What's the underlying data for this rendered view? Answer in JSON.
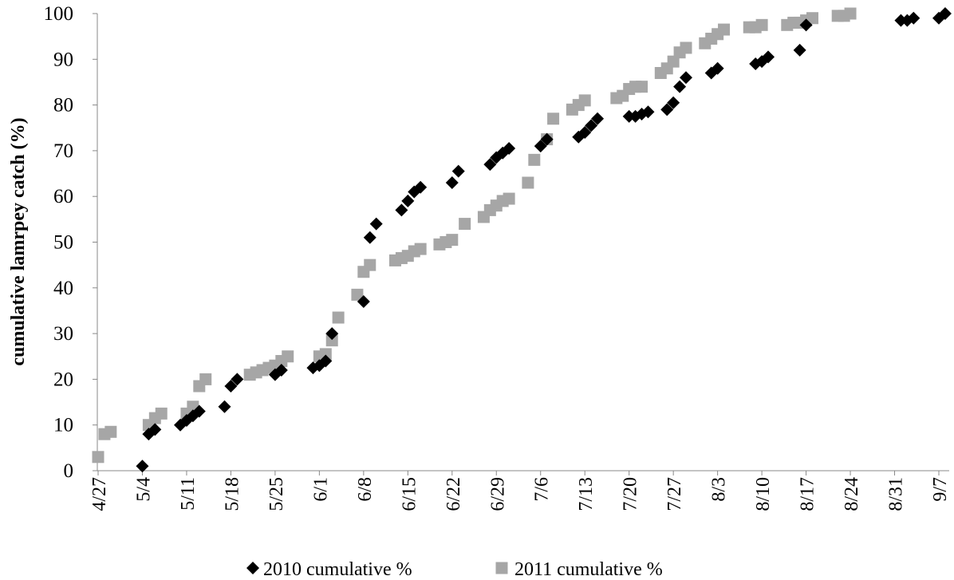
{
  "chart_data": {
    "type": "scatter",
    "title": "",
    "xlabel": "",
    "ylabel": "cumulative lamrpey catch (%)",
    "ylim": [
      0,
      100
    ],
    "y_ticks": [
      "0",
      "10",
      "20",
      "30",
      "40",
      "50",
      "60",
      "70",
      "80",
      "90",
      "100"
    ],
    "x_tick_labels": [
      "4/27",
      "5/4",
      "5/11",
      "5/18",
      "5/25",
      "6/1",
      "6/8",
      "6/15",
      "6/22",
      "6/29",
      "7/6",
      "7/13",
      "7/20",
      "7/27",
      "8/3",
      "8/10",
      "8/17",
      "8/24",
      "8/31",
      "9/7"
    ],
    "xlim": [
      "4/27",
      "9/8"
    ],
    "grid": false,
    "legend_position": "bottom",
    "colors": {
      "2010": "#000000",
      "2011": "#a6a6a6"
    },
    "series": [
      {
        "name": "2010 cumulative %",
        "marker": "diamond",
        "points": [
          [
            "5/4",
            1
          ],
          [
            "5/5",
            8
          ],
          [
            "5/6",
            9
          ],
          [
            "5/10",
            10
          ],
          [
            "5/11",
            11
          ],
          [
            "5/12",
            12
          ],
          [
            "5/13",
            13
          ],
          [
            "5/17",
            14
          ],
          [
            "5/18",
            18.5
          ],
          [
            "5/19",
            20
          ],
          [
            "5/25",
            21
          ],
          [
            "5/26",
            22
          ],
          [
            "5/31",
            22.5
          ],
          [
            "6/1",
            23
          ],
          [
            "6/2",
            24
          ],
          [
            "6/3",
            30
          ],
          [
            "6/8",
            37
          ],
          [
            "6/9",
            51
          ],
          [
            "6/10",
            54
          ],
          [
            "6/14",
            57
          ],
          [
            "6/15",
            59
          ],
          [
            "6/16",
            61
          ],
          [
            "6/17",
            62
          ],
          [
            "6/22",
            63
          ],
          [
            "6/23",
            65.5
          ],
          [
            "6/28",
            67
          ],
          [
            "6/29",
            68.5
          ],
          [
            "6/30",
            69.5
          ],
          [
            "7/1",
            70.5
          ],
          [
            "7/6",
            71
          ],
          [
            "7/7",
            72.5
          ],
          [
            "7/12",
            73
          ],
          [
            "7/13",
            74
          ],
          [
            "7/14",
            75.5
          ],
          [
            "7/15",
            77
          ],
          [
            "7/20",
            77.5
          ],
          [
            "7/21",
            77.5
          ],
          [
            "7/22",
            78
          ],
          [
            "7/23",
            78.5
          ],
          [
            "7/26",
            79
          ],
          [
            "7/27",
            80.5
          ],
          [
            "7/28",
            84
          ],
          [
            "7/29",
            86
          ],
          [
            "8/2",
            87
          ],
          [
            "8/3",
            88
          ],
          [
            "8/9",
            89
          ],
          [
            "8/10",
            89.5
          ],
          [
            "8/11",
            90.5
          ],
          [
            "8/16",
            92
          ],
          [
            "8/17",
            97.5
          ],
          [
            "9/1",
            98.5
          ],
          [
            "9/2",
            98.5
          ],
          [
            "9/3",
            99
          ],
          [
            "9/7",
            99
          ],
          [
            "9/8",
            100
          ]
        ]
      },
      {
        "name": "2011 cumulative %",
        "marker": "square",
        "points": [
          [
            "4/27",
            3
          ],
          [
            "4/28",
            8
          ],
          [
            "4/29",
            8.5
          ],
          [
            "5/5",
            10
          ],
          [
            "5/6",
            11.5
          ],
          [
            "5/7",
            12.5
          ],
          [
            "5/11",
            12.5
          ],
          [
            "5/12",
            14
          ],
          [
            "5/13",
            18.5
          ],
          [
            "5/14",
            20
          ],
          [
            "5/21",
            21
          ],
          [
            "5/22",
            21.5
          ],
          [
            "5/23",
            22
          ],
          [
            "5/24",
            22.5
          ],
          [
            "5/25",
            23
          ],
          [
            "5/26",
            24
          ],
          [
            "5/27",
            25
          ],
          [
            "6/1",
            25
          ],
          [
            "6/2",
            25.5
          ],
          [
            "6/3",
            28.5
          ],
          [
            "6/4",
            33.5
          ],
          [
            "6/7",
            38.5
          ],
          [
            "6/8",
            43.5
          ],
          [
            "6/9",
            45
          ],
          [
            "6/13",
            46
          ],
          [
            "6/14",
            46.5
          ],
          [
            "6/15",
            47
          ],
          [
            "6/16",
            48
          ],
          [
            "6/17",
            48.5
          ],
          [
            "6/20",
            49.5
          ],
          [
            "6/21",
            50
          ],
          [
            "6/22",
            50.5
          ],
          [
            "6/24",
            54
          ],
          [
            "6/27",
            55.5
          ],
          [
            "6/28",
            57
          ],
          [
            "6/29",
            58
          ],
          [
            "6/30",
            59
          ],
          [
            "7/1",
            59.5
          ],
          [
            "7/4",
            63
          ],
          [
            "7/5",
            68
          ],
          [
            "7/7",
            72.5
          ],
          [
            "7/8",
            77
          ],
          [
            "7/11",
            79
          ],
          [
            "7/12",
            80
          ],
          [
            "7/13",
            81
          ],
          [
            "7/18",
            81.5
          ],
          [
            "7/19",
            82
          ],
          [
            "7/20",
            83.5
          ],
          [
            "7/21",
            84
          ],
          [
            "7/22",
            84
          ],
          [
            "7/25",
            87
          ],
          [
            "7/26",
            88
          ],
          [
            "7/27",
            89.5
          ],
          [
            "7/28",
            91.5
          ],
          [
            "7/29",
            92.5
          ],
          [
            "8/1",
            93.5
          ],
          [
            "8/2",
            94.5
          ],
          [
            "8/3",
            95.5
          ],
          [
            "8/4",
            96.5
          ],
          [
            "8/8",
            97
          ],
          [
            "8/9",
            97
          ],
          [
            "8/10",
            97.5
          ],
          [
            "8/14",
            97.5
          ],
          [
            "8/15",
            98
          ],
          [
            "8/16",
            98
          ],
          [
            "8/17",
            98.5
          ],
          [
            "8/18",
            99
          ],
          [
            "8/22",
            99.5
          ],
          [
            "8/23",
            99.5
          ],
          [
            "8/24",
            100
          ]
        ]
      }
    ]
  }
}
